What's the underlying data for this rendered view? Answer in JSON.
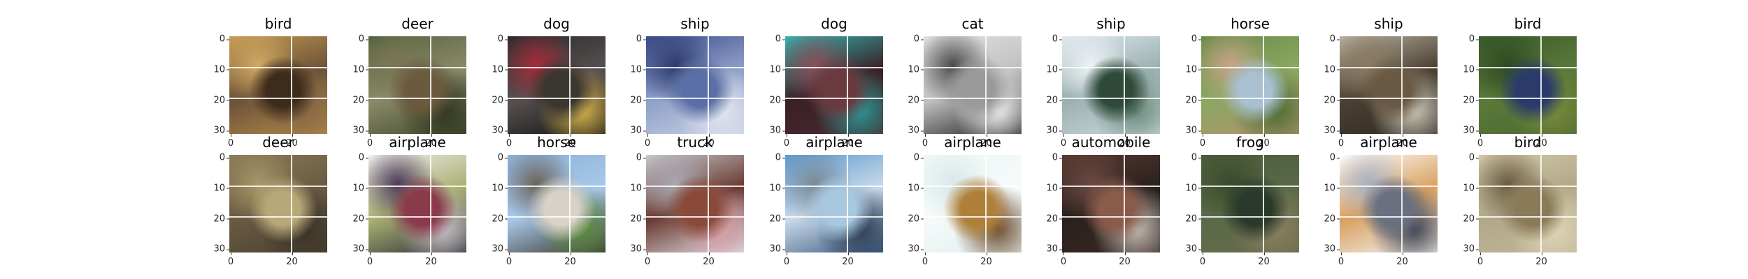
{
  "panels": [
    {
      "label": "bird",
      "colors": [
        "#c89b55",
        "#b58a4a",
        "#3d2b1b",
        "#8a6a45",
        "#d2a963",
        "#6b5238"
      ]
    },
    {
      "label": "deer",
      "colors": [
        "#55623d",
        "#3f4a2a",
        "#6b5a3e",
        "#2f3320",
        "#7a7553",
        "#8a8a6a"
      ]
    },
    {
      "label": "dog",
      "colors": [
        "#2a2a2a",
        "#141414",
        "#3a3630",
        "#d9b64a",
        "#a82a3a",
        "#585050"
      ]
    },
    {
      "label": "ship",
      "colors": [
        "#3b4a8a",
        "#c9d2e6",
        "#5a6fa5",
        "#e6e8f0",
        "#2d3a6e",
        "#8ea0c8"
      ]
    },
    {
      "label": "dog",
      "colors": [
        "#35b6b4",
        "#4a2a30",
        "#6a3a40",
        "#2a9a98",
        "#8a5058",
        "#3a2025"
      ]
    },
    {
      "label": "cat",
      "colors": [
        "#e2e2e2",
        "#1e1e1e",
        "#9a9a9a",
        "#f2f2f2",
        "#4a4a4a",
        "#c0c0c0"
      ]
    },
    {
      "label": "ship",
      "colors": [
        "#dfe8ee",
        "#cdd9e0",
        "#2f4a3a",
        "#6a8a7a",
        "#eef3f6",
        "#9ab0b0"
      ]
    },
    {
      "label": "horse",
      "colors": [
        "#6a8a48",
        "#b59072",
        "#a8c0d0",
        "#4a6a30",
        "#c8a488",
        "#8aa860"
      ]
    },
    {
      "label": "ship",
      "colors": [
        "#b8b0a0",
        "#2f2a22",
        "#6a5a44",
        "#d2ccbc",
        "#8a7a60",
        "#4a4032"
      ]
    },
    {
      "label": "bird",
      "colors": [
        "#3a5a2a",
        "#4a6a32",
        "#2a3a6a",
        "#7a8a3a",
        "#2e4a22",
        "#5a7a3a"
      ]
    },
    {
      "label": "deer",
      "colors": [
        "#8a7a55",
        "#4a4030",
        "#b8a878",
        "#3a3228",
        "#a89868",
        "#6a5a42"
      ]
    },
    {
      "label": "airplane",
      "colors": [
        "#f2eef2",
        "#2a2a3a",
        "#8a3a4a",
        "#c8c0c8",
        "#4a3a5a",
        "#a8b070"
      ]
    },
    {
      "label": "horse",
      "colors": [
        "#8ab0d8",
        "#3a3530",
        "#d8d2c8",
        "#5a8a3a",
        "#6a6258",
        "#a8c8e8"
      ]
    },
    {
      "label": "truck",
      "colors": [
        "#c8c8d0",
        "#e0e0e8",
        "#8a4a3a",
        "#d8a0a8",
        "#a8a8b0",
        "#6a3a30"
      ]
    },
    {
      "label": "airplane",
      "colors": [
        "#5a9ad0",
        "#3a5a80",
        "#a8c8e0",
        "#2a3a50",
        "#7a8a98",
        "#c8d8e8"
      ]
    },
    {
      "label": "airplane",
      "colors": [
        "#eef6f6",
        "#e2eeee",
        "#b0803a",
        "#6a4a2a",
        "#d8e8e8",
        "#f6fafa"
      ]
    },
    {
      "label": "automobile",
      "colors": [
        "#5a3a32",
        "#3a2a26",
        "#8a5a4a",
        "#c8c0b8",
        "#6a4a40",
        "#2a201c"
      ]
    },
    {
      "label": "frog",
      "colors": [
        "#4a5a3a",
        "#6a6a4a",
        "#2a3a2a",
        "#8a8060",
        "#3a4a2a",
        "#5a6a48"
      ]
    },
    {
      "label": "airplane",
      "colors": [
        "#ffffff",
        "#f4f4f6",
        "#6a7080",
        "#3a4050",
        "#a8b0c0",
        "#d8a060"
      ]
    },
    {
      "label": "bird",
      "colors": [
        "#d2caa8",
        "#c0b898",
        "#8a7a58",
        "#e0d8b8",
        "#6a5a40",
        "#b0a888"
      ]
    }
  ],
  "yticks": [
    "0",
    "10",
    "20",
    "30"
  ],
  "xticks": [
    "0",
    "20"
  ]
}
